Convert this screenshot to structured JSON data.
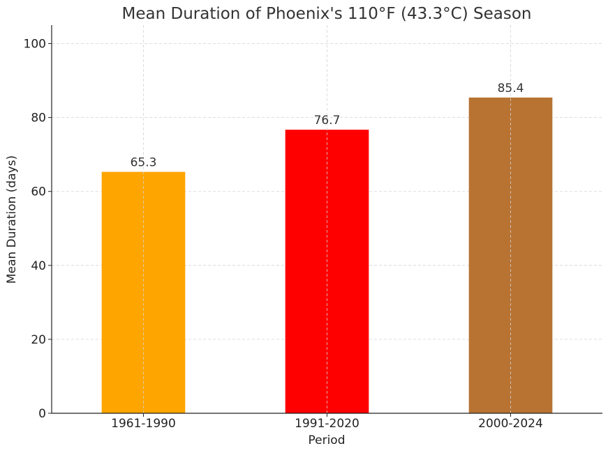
{
  "chart_data": {
    "type": "bar",
    "title": "Mean Duration of Phoenix's 110°F (43.3°C) Season",
    "xlabel": "Period",
    "ylabel": "Mean Duration (days)",
    "categories": [
      "1961-1990",
      "1991-2020",
      "2000-2024"
    ],
    "values": [
      65.3,
      76.7,
      85.4
    ],
    "value_labels": [
      "65.3",
      "76.7",
      "85.4"
    ],
    "bar_colors": [
      "#ffa500",
      "#ff0000",
      "#b87333"
    ],
    "ylim": [
      0,
      105
    ],
    "yticks": [
      0,
      20,
      40,
      60,
      80,
      100
    ],
    "ytick_labels": [
      "0",
      "20",
      "40",
      "60",
      "80",
      "100"
    ],
    "grid": true,
    "grid_style": "dashed",
    "legend": false
  }
}
